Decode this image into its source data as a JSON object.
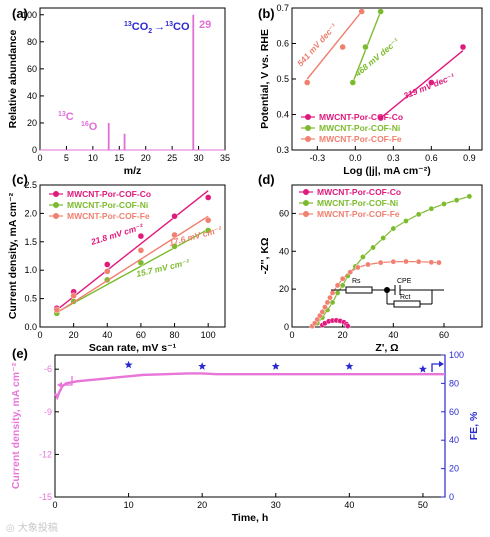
{
  "colors": {
    "co": "#e0197d",
    "ni": "#7dbb2e",
    "fe": "#f08070",
    "ms": "#e070d8",
    "fe_series": "#e875d8",
    "fe_axis": "#2a2ad0",
    "axis": "#000000"
  },
  "panels": {
    "a": {
      "label": "(a)",
      "annotation_prefix": "13",
      "annotation_mid": "CO",
      "annotation_arrow": "→",
      "annotation_suffix_sup": "13",
      "annotation_suffix": "CO",
      "peak_label_29": "29",
      "peak_label_13c_sup": "13",
      "peak_label_13c": "C",
      "peak_label_16o_sup": "16",
      "peak_label_16o": "O"
    },
    "b": {
      "label": "(b)"
    },
    "c": {
      "label": "(c)"
    },
    "d": {
      "label": "(d)",
      "circuit_rs": "Rs",
      "circuit_cpe": "CPE",
      "circuit_rct": "Rct"
    },
    "e": {
      "label": "(e)"
    }
  },
  "chart_data": [
    {
      "panel": "a",
      "type": "bar",
      "xlabel": "m/z",
      "ylabel": "Relative abundance",
      "xlim": [
        0,
        35
      ],
      "ylim": [
        0,
        105
      ],
      "xticks": [
        0,
        5,
        10,
        15,
        20,
        25,
        30,
        35
      ],
      "yticks": [
        0,
        20,
        40,
        60,
        80,
        100
      ],
      "x": [
        13,
        16,
        29
      ],
      "values": [
        20,
        12,
        100
      ],
      "labels": [
        "13C",
        "16O",
        "29"
      ],
      "annotation": "13CO2 → 13CO"
    },
    {
      "panel": "b",
      "type": "scatter",
      "xlabel": "Log (|j|, mA cm⁻²)",
      "ylabel": "Potential, V vs. RHE",
      "xlim": [
        -0.5,
        1.0
      ],
      "ylim": [
        0.3,
        0.7
      ],
      "xticks": [
        -0.3,
        0.0,
        0.3,
        0.6,
        0.9
      ],
      "xtick_labels": [
        "-0.3",
        "0.0",
        "0.3",
        "0.6",
        "0.9"
      ],
      "yticks": [
        0.3,
        0.4,
        0.5,
        0.6,
        0.7
      ],
      "legend_position": "bottom-left",
      "series": [
        {
          "name": "MWCNT-Por-COF-Co",
          "color_key": "co",
          "x": [
            0.2,
            0.6,
            0.85
          ],
          "y": [
            0.39,
            0.49,
            0.59
          ],
          "fit_x": [
            0.2,
            0.85
          ],
          "fit_y": [
            0.39,
            0.58
          ],
          "slope_label": "319 mV dec⁻¹"
        },
        {
          "name": "MWCNT-Por-COF-Ni",
          "color_key": "ni",
          "x": [
            -0.02,
            0.08,
            0.2
          ],
          "y": [
            0.49,
            0.59,
            0.69
          ],
          "fit_x": [
            -0.02,
            0.2
          ],
          "fit_y": [
            0.49,
            0.69
          ],
          "slope_label": "468 mV dec⁻¹"
        },
        {
          "name": "MWCNT-Por-COF-Fe",
          "color_key": "fe",
          "x": [
            -0.38,
            -0.1,
            0.05
          ],
          "y": [
            0.49,
            0.59,
            0.69
          ],
          "fit_x": [
            -0.38,
            0.05
          ],
          "fit_y": [
            0.5,
            0.69
          ],
          "slope_label": "541 mV dec⁻¹"
        }
      ]
    },
    {
      "panel": "c",
      "type": "scatter",
      "xlabel": "Scan rate, mV s⁻¹",
      "ylabel": "Current density, mA cm⁻²",
      "xlim": [
        0,
        110
      ],
      "ylim": [
        0,
        2.5
      ],
      "xticks": [
        0,
        20,
        40,
        60,
        80,
        100
      ],
      "yticks": [
        0.0,
        0.5,
        1.0,
        1.5,
        2.0,
        2.5
      ],
      "ytick_labels": [
        "0.0",
        "0.5",
        "1.0",
        "1.5",
        "2.0",
        "2.5"
      ],
      "legend_position": "top-left",
      "series": [
        {
          "name": "MWCNT-Por-COF-Co",
          "color_key": "co",
          "x": [
            10,
            20,
            40,
            60,
            80,
            100
          ],
          "y": [
            0.33,
            0.62,
            1.1,
            1.6,
            1.95,
            2.28
          ],
          "fit_x": [
            10,
            100
          ],
          "fit_y": [
            0.3,
            2.4
          ],
          "slope_label": "21.8 mV cm⁻²"
        },
        {
          "name": "MWCNT-Por-COF-Ni",
          "color_key": "ni",
          "x": [
            10,
            20,
            40,
            60,
            80,
            100
          ],
          "y": [
            0.24,
            0.45,
            0.83,
            1.13,
            1.42,
            1.7
          ],
          "fit_x": [
            10,
            100
          ],
          "fit_y": [
            0.26,
            1.72
          ],
          "slope_label": "15.7 mV cm⁻²"
        },
        {
          "name": "MWCNT-Por-COF-Fe",
          "color_key": "fe",
          "x": [
            10,
            20,
            40,
            60,
            80,
            100
          ],
          "y": [
            0.3,
            0.55,
            0.98,
            1.35,
            1.62,
            1.88
          ],
          "fit_x": [
            10,
            100
          ],
          "fit_y": [
            0.25,
            1.95
          ],
          "slope_label": "17.6 mV cm⁻²"
        }
      ]
    },
    {
      "panel": "d",
      "type": "scatter",
      "xlabel": "Z', Ω",
      "ylabel": "-Z'', KΩ",
      "xlim": [
        0,
        75
      ],
      "ylim": [
        0,
        75
      ],
      "xticks": [
        0,
        20,
        40,
        60
      ],
      "yticks": [
        0,
        20,
        40,
        60
      ],
      "legend_position": "top-left",
      "series": [
        {
          "name": "MWCNT-Por-COF-Co",
          "color_key": "co",
          "x": [
            12.0,
            13.0,
            14.5,
            16.0,
            17.5,
            19.0,
            20.5,
            21.5,
            22.0
          ],
          "y": [
            1.0,
            2.0,
            3.0,
            3.4,
            3.5,
            3.2,
            2.5,
            1.5,
            0.5
          ]
        },
        {
          "name": "MWCNT-Por-COF-Ni",
          "color_key": "ni",
          "x": [
            8,
            10,
            12,
            14,
            16,
            18,
            20,
            22,
            25,
            28,
            32,
            36,
            40,
            45,
            50,
            55,
            60,
            65,
            70
          ],
          "y": [
            0.5,
            2,
            5,
            9,
            13,
            18,
            22,
            27,
            32,
            37,
            42,
            47,
            52,
            56,
            59.5,
            62.5,
            65,
            67,
            69
          ]
        },
        {
          "name": "MWCNT-Por-COF-Fe",
          "color_key": "fe",
          "x": [
            8,
            9,
            10,
            11,
            12,
            13,
            14,
            15,
            16,
            18,
            20,
            23,
            26,
            30,
            35,
            40,
            45,
            50,
            55,
            58
          ],
          "y": [
            0.5,
            2,
            4,
            6,
            8,
            10.5,
            13,
            15.5,
            18,
            22,
            25.5,
            29,
            31.5,
            33,
            34,
            34.5,
            34.6,
            34.5,
            34.2,
            34.0
          ]
        }
      ]
    },
    {
      "panel": "e",
      "type": "line",
      "xlabel": "Time, h",
      "ylabel": "Current density, mA cm⁻²",
      "y2label": "FE, %",
      "xlim": [
        0,
        53
      ],
      "ylim": [
        -15,
        -5
      ],
      "y2lim": [
        0,
        100
      ],
      "xticks": [
        0,
        10,
        20,
        30,
        40,
        50
      ],
      "yticks": [
        -6,
        -9,
        -12,
        -15
      ],
      "y2ticks": [
        0,
        20,
        40,
        60,
        80,
        100
      ],
      "series": [
        {
          "name": "current density",
          "x": [
            0,
            0.3,
            0.6,
            1.0,
            1.5,
            2.0,
            3.0,
            4.0,
            6.0,
            8.0,
            10.0,
            12.0,
            15.0,
            18.0,
            20.0,
            22.0,
            25.0,
            30.0,
            35.0,
            40.0,
            45.0,
            50.0,
            53.0
          ],
          "y": [
            -7.7,
            -8.0,
            -7.6,
            -7.2,
            -7.0,
            -6.95,
            -6.85,
            -6.8,
            -6.7,
            -6.6,
            -6.5,
            -6.4,
            -6.35,
            -6.3,
            -6.3,
            -6.35,
            -6.35,
            -6.35,
            -6.35,
            -6.35,
            -6.35,
            -6.35,
            -6.35
          ]
        },
        {
          "name": "FE",
          "x": [
            10,
            20,
            30,
            40,
            50
          ],
          "y": [
            93,
            92,
            92,
            92,
            90
          ]
        }
      ]
    }
  ]
}
